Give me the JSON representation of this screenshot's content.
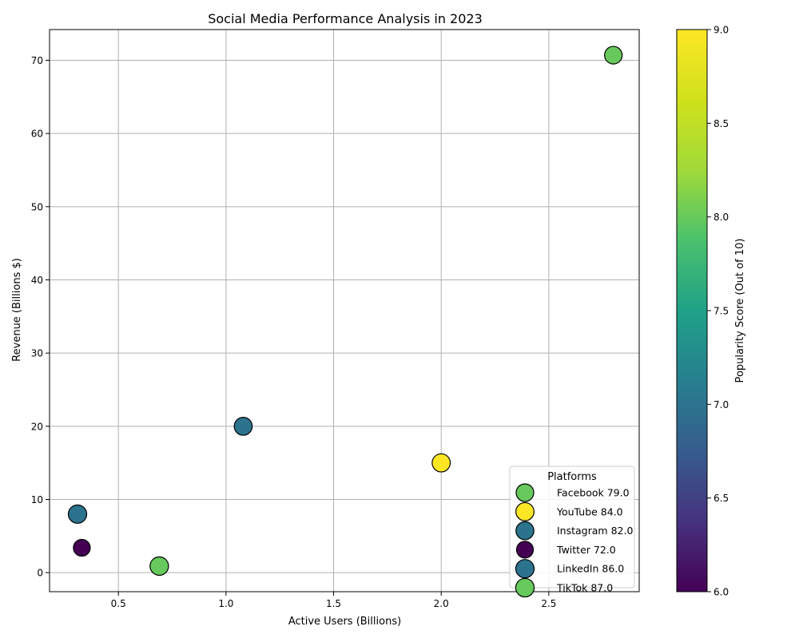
{
  "chart_data": {
    "type": "scatter",
    "title": "Social Media Performance Analysis in 2023",
    "xlabel": "Active Users (Billions)",
    "ylabel": "Revenue (Billions $)",
    "xlim": [
      0.18,
      2.92
    ],
    "ylim": [
      -2.6,
      74.2
    ],
    "x_ticks": [
      0.5,
      1.0,
      1.5,
      2.0,
      2.5
    ],
    "x_tick_labels": [
      "0.5",
      "1.0",
      "1.5",
      "2.0",
      "2.5"
    ],
    "y_ticks": [
      0,
      10,
      20,
      30,
      40,
      50,
      60,
      70
    ],
    "y_tick_labels": [
      "0",
      "10",
      "20",
      "30",
      "40",
      "50",
      "60",
      "70"
    ],
    "grid": true,
    "legend": {
      "title": "Platforms",
      "placement": "lower-right"
    },
    "colorbar": {
      "label": "Popularity Score (Out of 10)",
      "range": [
        6.0,
        9.0
      ],
      "ticks": [
        6.0,
        6.5,
        7.0,
        7.5,
        8.0,
        8.5,
        9.0
      ],
      "tick_labels": [
        "6.0",
        "6.5",
        "7.0",
        "7.5",
        "8.0",
        "8.5",
        "9.0"
      ],
      "colormap": "viridis"
    },
    "points": [
      {
        "platform": "Facebook",
        "x": 2.8,
        "y": 70.7,
        "popularity": 8,
        "size_value": 79.0,
        "legend_label": "Facebook 79.0"
      },
      {
        "platform": "YouTube",
        "x": 2.0,
        "y": 15.0,
        "popularity": 9,
        "size_value": 84.0,
        "legend_label": "YouTube 84.0"
      },
      {
        "platform": "Instagram",
        "x": 1.08,
        "y": 20.0,
        "popularity": 7,
        "size_value": 82.0,
        "legend_label": "Instagram 82.0"
      },
      {
        "platform": "Twitter",
        "x": 0.33,
        "y": 3.4,
        "popularity": 6,
        "size_value": 72.0,
        "legend_label": "Twitter 72.0"
      },
      {
        "platform": "LinkedIn",
        "x": 0.31,
        "y": 8.0,
        "popularity": 7,
        "size_value": 86.0,
        "legend_label": "LinkedIn 86.0"
      },
      {
        "platform": "TikTok",
        "x": 0.69,
        "y": 0.9,
        "popularity": 8,
        "size_value": 87.0,
        "legend_label": "TikTok 87.0"
      }
    ]
  }
}
